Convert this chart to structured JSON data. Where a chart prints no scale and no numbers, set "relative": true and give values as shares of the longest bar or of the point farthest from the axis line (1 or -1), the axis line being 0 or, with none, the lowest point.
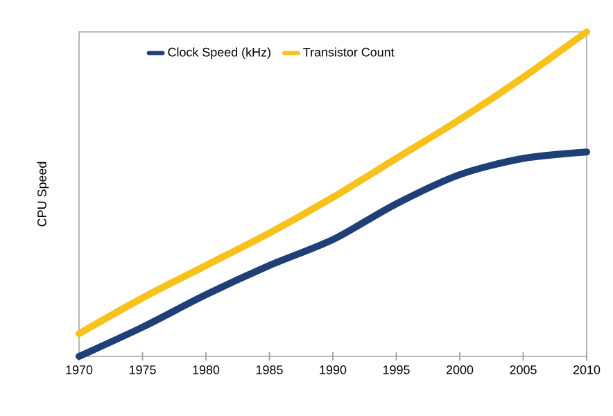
{
  "chart_data": {
    "type": "line",
    "relative": true,
    "ylabel": "CPU Speed",
    "x": [
      1970,
      1975,
      1980,
      1985,
      1990,
      1995,
      2000,
      2005,
      2010
    ],
    "xlim": [
      1970,
      2010
    ],
    "xticks": [
      1970,
      1975,
      1980,
      1985,
      1990,
      1995,
      2000,
      2005,
      2010
    ],
    "series": [
      {
        "name": "Clock Speed (kHz)",
        "color": "#1f3f77",
        "values": [
          0,
          0.09,
          0.19,
          0.28,
          0.36,
          0.47,
          0.56,
          0.61,
          0.63
        ]
      },
      {
        "name": "Transistor Count",
        "color": "#f7c21b",
        "values": [
          0.07,
          0.18,
          0.28,
          0.38,
          0.49,
          0.61,
          0.73,
          0.86,
          1
        ]
      }
    ],
    "legend": "top",
    "marker": "none",
    "line_style": "solid"
  }
}
